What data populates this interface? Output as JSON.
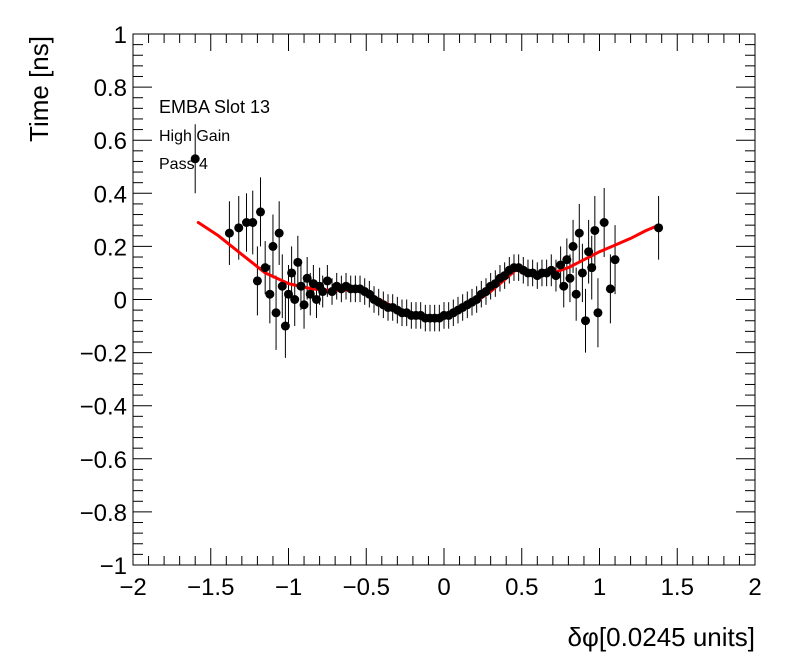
{
  "chart_data": {
    "type": "scatter",
    "title": "",
    "xlabel": "δφ[0.0245 units]",
    "ylabel": "Time [ns]",
    "xlim": [
      -2,
      2
    ],
    "ylim": [
      -1,
      1
    ],
    "x_ticks": [
      -2,
      -1.5,
      -1,
      -0.5,
      0,
      0.5,
      1,
      1.5,
      2
    ],
    "x_tick_labels": [
      "−2",
      "−1.5",
      "−1",
      "−0.5",
      "0",
      "0.5",
      "1",
      "1.5",
      "2"
    ],
    "y_ticks": [
      -1,
      -0.8,
      -0.6,
      -0.4,
      -0.2,
      0,
      0.2,
      0.4,
      0.6,
      0.8,
      1
    ],
    "y_tick_labels": [
      "−1",
      "−0.8",
      "−0.6",
      "−0.4",
      "−0.2",
      "0",
      "0.2",
      "0.4",
      "0.6",
      "0.8",
      "1"
    ],
    "annotations": [
      "EMBA Slot 13",
      "High Gain",
      "Pass 4"
    ],
    "colors": {
      "points": "#000000",
      "fit": "#ff0000",
      "frame": "#000000"
    },
    "series": [
      {
        "name": "measurements",
        "kind": "points_with_errors",
        "points": [
          {
            "x": -1.6,
            "y": 0.53,
            "err": 0.13
          },
          {
            "x": -1.38,
            "y": 0.25,
            "err": 0.12
          },
          {
            "x": -1.32,
            "y": 0.27,
            "err": 0.12
          },
          {
            "x": -1.27,
            "y": 0.29,
            "err": 0.11
          },
          {
            "x": -1.23,
            "y": 0.29,
            "err": 0.12
          },
          {
            "x": -1.2,
            "y": 0.07,
            "err": 0.13
          },
          {
            "x": -1.18,
            "y": 0.33,
            "err": 0.13
          },
          {
            "x": -1.15,
            "y": 0.12,
            "err": 0.1
          },
          {
            "x": -1.12,
            "y": 0.02,
            "err": 0.11
          },
          {
            "x": -1.1,
            "y": 0.2,
            "err": 0.12
          },
          {
            "x": -1.08,
            "y": -0.05,
            "err": 0.14
          },
          {
            "x": -1.06,
            "y": 0.25,
            "err": 0.12
          },
          {
            "x": -1.04,
            "y": 0.05,
            "err": 0.12
          },
          {
            "x": -1.02,
            "y": -0.1,
            "err": 0.12
          },
          {
            "x": -1.0,
            "y": 0.02,
            "err": 0.11
          },
          {
            "x": -0.98,
            "y": 0.1,
            "err": 0.1
          },
          {
            "x": -0.96,
            "y": 0.0,
            "err": 0.1
          },
          {
            "x": -0.94,
            "y": 0.14,
            "err": 0.1
          },
          {
            "x": -0.92,
            "y": 0.05,
            "err": 0.09
          },
          {
            "x": -0.9,
            "y": -0.02,
            "err": 0.09
          },
          {
            "x": -0.88,
            "y": 0.08,
            "err": 0.08
          },
          {
            "x": -0.86,
            "y": 0.02,
            "err": 0.08
          },
          {
            "x": -0.84,
            "y": 0.06,
            "err": 0.07
          },
          {
            "x": -0.82,
            "y": 0.0,
            "err": 0.07
          },
          {
            "x": -0.8,
            "y": 0.05,
            "err": 0.07
          },
          {
            "x": -0.78,
            "y": 0.03,
            "err": 0.06
          },
          {
            "x": -0.75,
            "y": 0.07,
            "err": 0.06
          },
          {
            "x": -0.72,
            "y": 0.03,
            "err": 0.05
          },
          {
            "x": -0.69,
            "y": 0.05,
            "err": 0.05
          },
          {
            "x": -0.66,
            "y": 0.04,
            "err": 0.05
          },
          {
            "x": -0.63,
            "y": 0.05,
            "err": 0.05
          },
          {
            "x": -0.6,
            "y": 0.04,
            "err": 0.05
          },
          {
            "x": -0.57,
            "y": 0.04,
            "err": 0.05
          },
          {
            "x": -0.54,
            "y": 0.04,
            "err": 0.05
          },
          {
            "x": -0.51,
            "y": 0.03,
            "err": 0.05
          },
          {
            "x": -0.48,
            "y": 0.02,
            "err": 0.05
          },
          {
            "x": -0.45,
            "y": 0.0,
            "err": 0.05
          },
          {
            "x": -0.42,
            "y": -0.01,
            "err": 0.05
          },
          {
            "x": -0.39,
            "y": -0.02,
            "err": 0.05
          },
          {
            "x": -0.36,
            "y": -0.03,
            "err": 0.05
          },
          {
            "x": -0.33,
            "y": -0.03,
            "err": 0.05
          },
          {
            "x": -0.3,
            "y": -0.04,
            "err": 0.05
          },
          {
            "x": -0.27,
            "y": -0.05,
            "err": 0.05
          },
          {
            "x": -0.24,
            "y": -0.05,
            "err": 0.05
          },
          {
            "x": -0.21,
            "y": -0.06,
            "err": 0.05
          },
          {
            "x": -0.18,
            "y": -0.06,
            "err": 0.05
          },
          {
            "x": -0.15,
            "y": -0.06,
            "err": 0.05
          },
          {
            "x": -0.12,
            "y": -0.07,
            "err": 0.05
          },
          {
            "x": -0.09,
            "y": -0.07,
            "err": 0.05
          },
          {
            "x": -0.06,
            "y": -0.07,
            "err": 0.05
          },
          {
            "x": -0.03,
            "y": -0.07,
            "err": 0.05
          },
          {
            "x": 0.0,
            "y": -0.06,
            "err": 0.05
          },
          {
            "x": 0.03,
            "y": -0.06,
            "err": 0.05
          },
          {
            "x": 0.06,
            "y": -0.05,
            "err": 0.05
          },
          {
            "x": 0.09,
            "y": -0.04,
            "err": 0.05
          },
          {
            "x": 0.12,
            "y": -0.03,
            "err": 0.05
          },
          {
            "x": 0.15,
            "y": -0.02,
            "err": 0.05
          },
          {
            "x": 0.18,
            "y": -0.01,
            "err": 0.05
          },
          {
            "x": 0.21,
            "y": 0.0,
            "err": 0.05
          },
          {
            "x": 0.24,
            "y": 0.02,
            "err": 0.05
          },
          {
            "x": 0.27,
            "y": 0.03,
            "err": 0.05
          },
          {
            "x": 0.3,
            "y": 0.05,
            "err": 0.05
          },
          {
            "x": 0.33,
            "y": 0.06,
            "err": 0.05
          },
          {
            "x": 0.36,
            "y": 0.08,
            "err": 0.05
          },
          {
            "x": 0.39,
            "y": 0.09,
            "err": 0.05
          },
          {
            "x": 0.42,
            "y": 0.11,
            "err": 0.05
          },
          {
            "x": 0.45,
            "y": 0.12,
            "err": 0.05
          },
          {
            "x": 0.48,
            "y": 0.12,
            "err": 0.05
          },
          {
            "x": 0.51,
            "y": 0.11,
            "err": 0.05
          },
          {
            "x": 0.54,
            "y": 0.1,
            "err": 0.05
          },
          {
            "x": 0.57,
            "y": 0.1,
            "err": 0.05
          },
          {
            "x": 0.6,
            "y": 0.09,
            "err": 0.05
          },
          {
            "x": 0.63,
            "y": 0.1,
            "err": 0.05
          },
          {
            "x": 0.66,
            "y": 0.1,
            "err": 0.05
          },
          {
            "x": 0.69,
            "y": 0.11,
            "err": 0.06
          },
          {
            "x": 0.72,
            "y": 0.09,
            "err": 0.06
          },
          {
            "x": 0.75,
            "y": 0.13,
            "err": 0.07
          },
          {
            "x": 0.77,
            "y": 0.05,
            "err": 0.08
          },
          {
            "x": 0.79,
            "y": 0.15,
            "err": 0.08
          },
          {
            "x": 0.81,
            "y": 0.08,
            "err": 0.09
          },
          {
            "x": 0.83,
            "y": 0.2,
            "err": 0.1
          },
          {
            "x": 0.85,
            "y": 0.02,
            "err": 0.1
          },
          {
            "x": 0.87,
            "y": 0.25,
            "err": 0.11
          },
          {
            "x": 0.89,
            "y": 0.1,
            "err": 0.11
          },
          {
            "x": 0.91,
            "y": -0.08,
            "err": 0.12
          },
          {
            "x": 0.93,
            "y": 0.18,
            "err": 0.12
          },
          {
            "x": 0.95,
            "y": 0.12,
            "err": 0.12
          },
          {
            "x": 0.97,
            "y": 0.26,
            "err": 0.13
          },
          {
            "x": 0.99,
            "y": -0.05,
            "err": 0.13
          },
          {
            "x": 1.03,
            "y": 0.29,
            "err": 0.13
          },
          {
            "x": 1.07,
            "y": 0.04,
            "err": 0.13
          },
          {
            "x": 1.1,
            "y": 0.15,
            "err": 0.13
          },
          {
            "x": 1.38,
            "y": 0.27,
            "err": 0.12
          }
        ]
      },
      {
        "name": "fit",
        "kind": "line",
        "x": [
          -1.58,
          -1.45,
          -1.3,
          -1.15,
          -1.0,
          -0.85,
          -0.75,
          -0.65,
          -0.55,
          -0.5,
          -0.45,
          -0.35,
          -0.25,
          -0.15,
          -0.08,
          0.0,
          0.1,
          0.2,
          0.3,
          0.4,
          0.46,
          0.52,
          0.6,
          0.7,
          0.8,
          0.9,
          1.0,
          1.1,
          1.2,
          1.3,
          1.38
        ],
        "y": [
          0.29,
          0.24,
          0.17,
          0.1,
          0.06,
          0.04,
          0.035,
          0.035,
          0.04,
          0.035,
          0.01,
          -0.02,
          -0.045,
          -0.06,
          -0.065,
          -0.06,
          -0.04,
          -0.01,
          0.03,
          0.08,
          0.11,
          0.105,
          0.095,
          0.1,
          0.12,
          0.15,
          0.18,
          0.205,
          0.23,
          0.26,
          0.28
        ]
      }
    ]
  }
}
